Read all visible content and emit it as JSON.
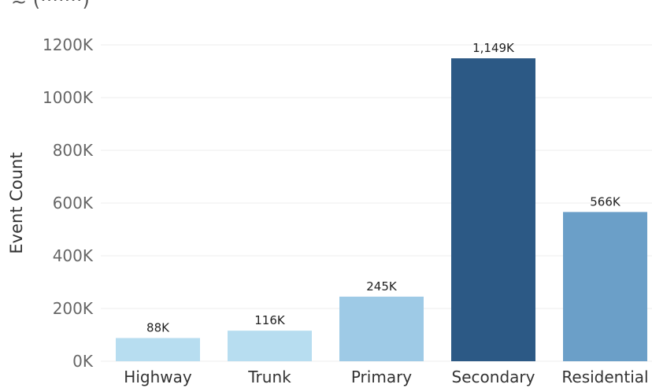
{
  "chart_data": {
    "type": "bar",
    "ylabel": "Event Count",
    "categories": [
      "Highway",
      "Trunk",
      "Primary",
      "Secondary",
      "Residential"
    ],
    "values": [
      88,
      116,
      245,
      1149,
      566
    ],
    "data_labels": [
      "88K",
      "116K",
      "245K",
      "1,149K",
      "566K"
    ],
    "colors": [
      "#b7ddf0",
      "#b7ddf0",
      "#9ecae6",
      "#2c5985",
      "#6b9fc8"
    ],
    "y_ticks": [
      0,
      200,
      400,
      600,
      800,
      1000,
      1200
    ],
    "y_tick_labels": [
      "0K",
      "200K",
      "400K",
      "600K",
      "800K",
      "1000K",
      "1200K"
    ],
    "ylim": [
      0,
      1200
    ],
    "grid": true,
    "legend": "none"
  }
}
